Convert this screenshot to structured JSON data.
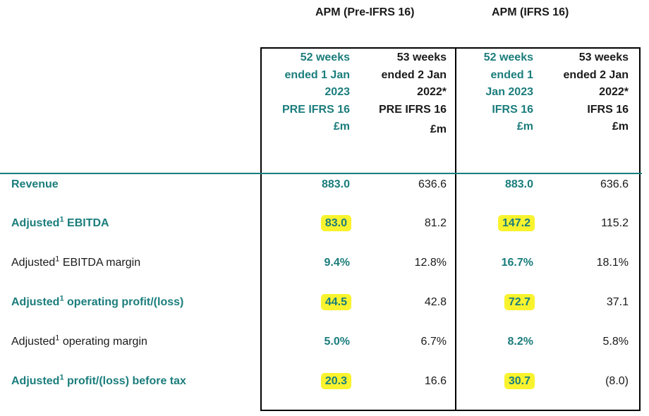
{
  "groups": {
    "pre": "APM (Pre-IFRS 16)",
    "post": "APM (IFRS 16)"
  },
  "columns": [
    {
      "lines": [
        "52 weeks",
        "ended 1 Jan",
        "2023",
        "PRE IFRS 16",
        "£m"
      ],
      "unit": ""
    },
    {
      "lines": [
        "53 weeks",
        "ended 2 Jan",
        "2022*",
        "PRE IFRS 16"
      ],
      "unit": "£m"
    },
    {
      "lines": [
        "52 weeks",
        "ended 1",
        "Jan 2023",
        "IFRS 16",
        "£m"
      ],
      "unit": ""
    },
    {
      "lines": [
        "53 weeks",
        "ended 2 Jan",
        "2022*",
        "IFRS 16",
        "£m"
      ],
      "unit": ""
    }
  ],
  "rows": [
    {
      "pre": "Revenue",
      "sup": "",
      "post": "",
      "values": [
        "883.0",
        "636.6",
        "883.0",
        "636.6"
      ]
    },
    {
      "pre": "Adjusted",
      "sup": "1",
      "post": " EBITDA",
      "values": [
        "83.0",
        "81.2",
        "147.2",
        "115.2"
      ]
    },
    {
      "pre": "Adjusted",
      "sup": "1",
      "post": " EBITDA margin",
      "values": [
        "9.4%",
        "12.8%",
        "16.7%",
        "18.1%"
      ]
    },
    {
      "pre": "Adjusted",
      "sup": "1",
      "post": " operating profit/(loss)",
      "values": [
        "44.5",
        "42.8",
        "72.7",
        "37.1"
      ]
    },
    {
      "pre": "Adjusted",
      "sup": "1",
      "post": " operating margin",
      "values": [
        "5.0%",
        "6.7%",
        "8.2%",
        "5.8%"
      ]
    },
    {
      "pre": "Adjusted",
      "sup": "1",
      "post": " profit/(loss) before tax",
      "values": [
        "20.3",
        "16.6",
        "30.7",
        "(8.0)"
      ]
    }
  ],
  "colors": {
    "teal": "#1b7d7c",
    "highlight": "#f9f32e"
  }
}
